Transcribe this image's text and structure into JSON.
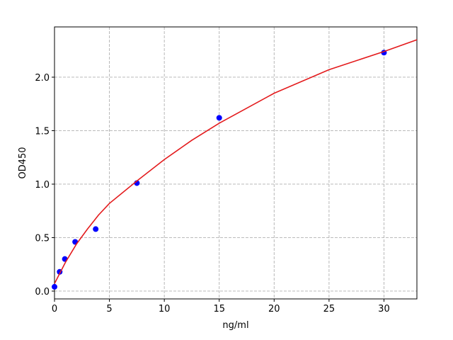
{
  "chart_data": {
    "type": "scatter",
    "x_label": "ng/ml",
    "y_label": "OD450",
    "xlim": [
      0,
      33
    ],
    "ylim": [
      -0.073,
      2.47
    ],
    "xticks": [
      0,
      5,
      10,
      15,
      20,
      25,
      30
    ],
    "yticks": [
      {
        "value": 0,
        "label": "0.0"
      },
      {
        "value": 0.5,
        "label": "0.5"
      },
      {
        "value": 1,
        "label": "1.0"
      },
      {
        "value": 1.5,
        "label": "1.5"
      },
      {
        "value": 2,
        "label": "2.0"
      }
    ],
    "grid": true,
    "series": [
      {
        "style": "markers",
        "color": "#0000ff",
        "x": [
          0,
          0.47,
          0.94,
          1.88,
          3.75,
          7.5,
          15,
          30
        ],
        "values": [
          0.04,
          0.18,
          0.3,
          0.46,
          0.58,
          1.01,
          1.62,
          2.23
        ]
      },
      {
        "style": "line",
        "color": "#e31a1c",
        "x": [
          0,
          1,
          2,
          3,
          4,
          5,
          7.5,
          10,
          12.5,
          15,
          20,
          25,
          30,
          33
        ],
        "values": [
          0.07,
          0.27,
          0.44,
          0.58,
          0.71,
          0.82,
          1.03,
          1.23,
          1.41,
          1.57,
          1.85,
          2.07,
          2.24,
          2.35
        ]
      }
    ]
  }
}
